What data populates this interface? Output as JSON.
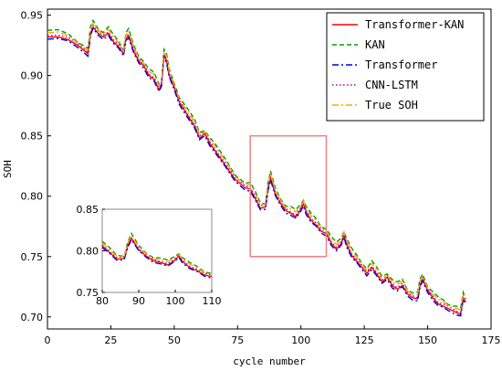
{
  "chart_data": {
    "type": "line",
    "xlabel": "cycle number",
    "ylabel": "SOH",
    "xlim": [
      0,
      175
    ],
    "ylim": [
      0.69,
      0.955
    ],
    "xticks": [
      "0",
      "25",
      "50",
      "75",
      "100",
      "125",
      "150",
      "175"
    ],
    "yticks": [
      "0.70",
      "0.75",
      "0.80",
      "0.85",
      "0.90",
      "0.95"
    ],
    "legend_position": "top-right",
    "series": [
      {
        "name": "Transformer-KAN",
        "color": "#ff0000",
        "dash": "solid",
        "offset": 0.0
      },
      {
        "name": "KAN",
        "color": "#00a000",
        "dash": "dashed",
        "offset": 0.006
      },
      {
        "name": "Transformer",
        "color": "#0000dd",
        "dash": "dashdot",
        "offset": -0.002
      },
      {
        "name": "CNN-LSTM",
        "color": "#aa00aa",
        "dash": "dotted",
        "offset": 0.002
      },
      {
        "name": "True SOH",
        "color": "#ffa500",
        "dash": "dashdot",
        "offset": 0.004
      }
    ],
    "base_curve": {
      "x": [
        0,
        4,
        8,
        12,
        16,
        17,
        18,
        20,
        22,
        24,
        26,
        28,
        30,
        31,
        32,
        34,
        36,
        38,
        40,
        42,
        44,
        45,
        46,
        47,
        48,
        50,
        52,
        55,
        58,
        60,
        62,
        64,
        66,
        70,
        74,
        78,
        80,
        82,
        84,
        86,
        87,
        88,
        90,
        92,
        94,
        96,
        98,
        100,
        101,
        102,
        104,
        106,
        108,
        110,
        112,
        114,
        116,
        117,
        118,
        120,
        122,
        124,
        126,
        128,
        130,
        132,
        134,
        136,
        138,
        140,
        142,
        144,
        146,
        147,
        148,
        150,
        152,
        154,
        156,
        158,
        160,
        162,
        163,
        164,
        165
      ],
      "y": [
        0.932,
        0.932,
        0.93,
        0.925,
        0.918,
        0.935,
        0.94,
        0.935,
        0.932,
        0.935,
        0.928,
        0.924,
        0.918,
        0.931,
        0.933,
        0.92,
        0.912,
        0.908,
        0.9,
        0.897,
        0.888,
        0.893,
        0.917,
        0.912,
        0.9,
        0.89,
        0.878,
        0.868,
        0.858,
        0.848,
        0.852,
        0.844,
        0.838,
        0.826,
        0.814,
        0.807,
        0.806,
        0.798,
        0.79,
        0.791,
        0.806,
        0.815,
        0.801,
        0.794,
        0.788,
        0.786,
        0.783,
        0.789,
        0.794,
        0.787,
        0.78,
        0.776,
        0.771,
        0.769,
        0.761,
        0.756,
        0.761,
        0.768,
        0.76,
        0.751,
        0.746,
        0.741,
        0.736,
        0.741,
        0.735,
        0.729,
        0.733,
        0.726,
        0.723,
        0.726,
        0.719,
        0.716,
        0.715,
        0.726,
        0.731,
        0.722,
        0.716,
        0.711,
        0.709,
        0.707,
        0.705,
        0.703,
        0.702,
        0.716,
        0.712
      ]
    },
    "highlight_box": {
      "x": [
        80,
        110
      ],
      "y": [
        0.75,
        0.85
      ],
      "color": "#f08080"
    },
    "inset": {
      "xlim": [
        80,
        110
      ],
      "ylim": [
        0.75,
        0.85
      ],
      "xticks": [
        "80",
        "90",
        "100",
        "110"
      ],
      "yticks": [
        "0.75",
        "0.80",
        "0.85"
      ]
    }
  }
}
